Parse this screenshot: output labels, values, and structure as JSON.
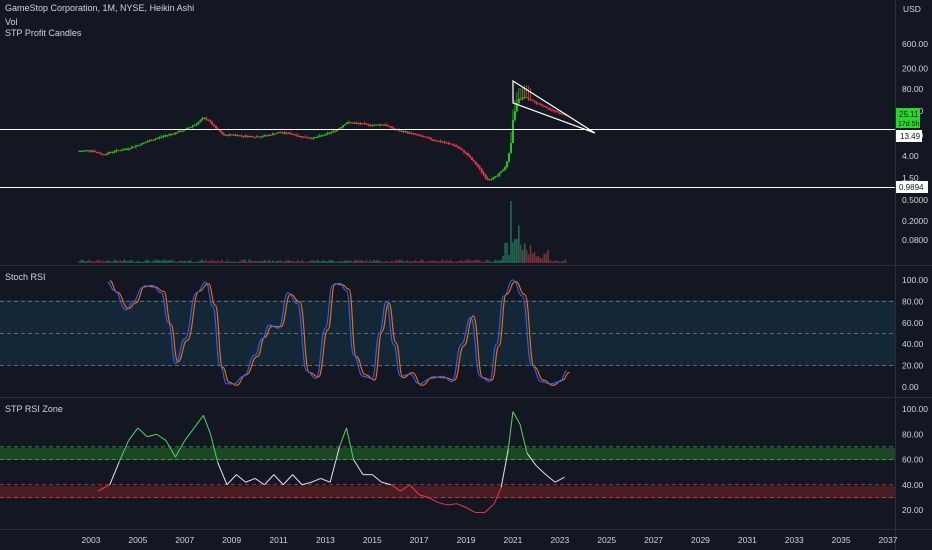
{
  "header": {
    "symbol_line": "GameStop Corporation, 1M, NYSE, Heikin Ashi",
    "vol_label": "Vol",
    "indicator_label": "STP Profit Candles",
    "currency": "USD"
  },
  "price_labels": {
    "current_price": "25.11",
    "countdown": "17d 5h",
    "upper_level": "13.49",
    "lower_level": "0.9894"
  },
  "colors": {
    "background": "#131722",
    "candle_up": "#26c623",
    "candle_down": "#f23645",
    "current_price_bg": "#2bd42b",
    "rsi_k": "#2962ff",
    "rsi_d": "#ff6d00",
    "zone_green": "#1e6b2a",
    "zone_red": "#6b1e1e"
  },
  "chart_data": [
    {
      "type": "candlestick",
      "name": "price",
      "scale": "log",
      "x_range": [
        2003,
        2037
      ],
      "y_ticks": [
        "600.00",
        "200.00",
        "80.00",
        "30.00",
        "10.00",
        "4.00",
        "1.50"
      ],
      "y_tick_values": [
        600,
        200,
        80,
        30,
        10,
        4,
        1.5
      ],
      "close_series": {
        "x": [
          2002.5,
          2003.0,
          2003.5,
          2004.0,
          2004.5,
          2005.0,
          2005.5,
          2006.0,
          2006.5,
          2007.0,
          2007.5,
          2007.8,
          2008.0,
          2008.3,
          2008.7,
          2009.0,
          2009.5,
          2010.0,
          2010.5,
          2011.0,
          2011.5,
          2012.0,
          2012.5,
          2013.0,
          2013.5,
          2013.9,
          2014.5,
          2015.0,
          2015.5,
          2016.0,
          2016.5,
          2017.0,
          2017.5,
          2018.0,
          2018.5,
          2019.0,
          2019.5,
          2019.9,
          2020.3,
          2020.7,
          2020.9,
          2021.0,
          2021.2,
          2021.5,
          2021.8,
          2022.0,
          2022.3,
          2022.6,
          2022.9,
          2023.1,
          2023.3
        ],
        "y": [
          5.0,
          5.2,
          4.3,
          5.0,
          5.5,
          6.5,
          8.0,
          9.5,
          11.0,
          13.0,
          17.0,
          22.0,
          20.0,
          14.0,
          10.0,
          10.5,
          9.8,
          9.5,
          10.0,
          11.5,
          11.0,
          9.5,
          9.0,
          10.5,
          13.0,
          18.0,
          17.0,
          16.0,
          16.5,
          13.0,
          11.5,
          10.0,
          8.5,
          7.5,
          6.5,
          4.5,
          2.5,
          1.4,
          1.6,
          2.5,
          6.0,
          20.0,
          50.0,
          55.0,
          48.0,
          42.0,
          38.0,
          32.0,
          28.0,
          26.0,
          25.11
        ]
      }
    },
    {
      "type": "bar",
      "name": "volume",
      "y_ticks": [
        "0.5000",
        "0.2000",
        "0.0800"
      ]
    },
    {
      "type": "line",
      "name": "Stoch RSI",
      "y_ticks": [
        "100.00",
        "80.00",
        "60.00",
        "40.00",
        "20.00",
        "0.00"
      ],
      "y_tick_values": [
        100,
        80,
        60,
        40,
        20,
        0
      ],
      "ylim": [
        0,
        100
      ],
      "bands": [
        20,
        50,
        80
      ],
      "series_k": {
        "x": [
          2003.7,
          2004.0,
          2004.5,
          2004.8,
          2005.2,
          2005.6,
          2006.0,
          2006.3,
          2006.6,
          2007.0,
          2007.5,
          2007.9,
          2008.2,
          2008.5,
          2008.8,
          2009.1,
          2009.5,
          2010.0,
          2010.3,
          2010.6,
          2011.0,
          2011.4,
          2011.8,
          2012.2,
          2012.6,
          2013.0,
          2013.3,
          2013.6,
          2013.9,
          2014.2,
          2014.6,
          2015.0,
          2015.3,
          2015.6,
          2015.9,
          2016.2,
          2016.6,
          2017.0,
          2017.5,
          2018.0,
          2018.4,
          2018.8,
          2019.2,
          2019.6,
          2020.0,
          2020.3,
          2020.6,
          2021.0,
          2021.4,
          2021.8,
          2022.2,
          2022.6,
          2023.0,
          2023.3
        ],
        "y": [
          98,
          90,
          72,
          80,
          93,
          95,
          88,
          60,
          22,
          45,
          88,
          98,
          75,
          20,
          3,
          3,
          10,
          30,
          45,
          58,
          55,
          88,
          78,
          15,
          8,
          55,
          95,
          97,
          90,
          30,
          10,
          8,
          50,
          80,
          40,
          10,
          12,
          3,
          8,
          10,
          5,
          40,
          65,
          10,
          5,
          40,
          85,
          100,
          85,
          20,
          5,
          3,
          5,
          15
        ]
      }
    },
    {
      "type": "line",
      "name": "STP RSI Zone",
      "y_ticks": [
        "100.00",
        "80.00",
        "60.00",
        "40.00",
        "20.00"
      ],
      "y_tick_values": [
        100,
        80,
        60,
        40,
        20
      ],
      "ylim": [
        10,
        110
      ],
      "bands": [
        30,
        40,
        60,
        70
      ],
      "series": {
        "x": [
          2003.3,
          2003.8,
          2004.2,
          2004.6,
          2005.0,
          2005.4,
          2005.8,
          2006.2,
          2006.6,
          2007.0,
          2007.4,
          2007.8,
          2008.1,
          2008.4,
          2008.8,
          2009.2,
          2009.6,
          2010.0,
          2010.4,
          2010.8,
          2011.2,
          2011.6,
          2012.0,
          2012.4,
          2012.8,
          2013.2,
          2013.6,
          2013.9,
          2014.2,
          2014.6,
          2015.0,
          2015.4,
          2015.8,
          2016.2,
          2016.6,
          2017.0,
          2017.4,
          2017.8,
          2018.2,
          2018.6,
          2019.0,
          2019.4,
          2019.8,
          2020.2,
          2020.5,
          2020.8,
          2021.0,
          2021.3,
          2021.6,
          2022.0,
          2022.4,
          2022.8,
          2023.2
        ],
        "y": [
          35,
          40,
          58,
          75,
          85,
          78,
          80,
          75,
          62,
          75,
          85,
          95,
          80,
          58,
          40,
          48,
          42,
          45,
          40,
          48,
          40,
          48,
          40,
          42,
          45,
          42,
          70,
          85,
          60,
          48,
          48,
          42,
          40,
          35,
          40,
          32,
          30,
          26,
          24,
          25,
          22,
          18,
          18,
          25,
          38,
          68,
          98,
          88,
          65,
          55,
          48,
          42,
          46
        ]
      }
    }
  ],
  "x_axis": {
    "ticks": [
      "2003",
      "2005",
      "2007",
      "2009",
      "2011",
      "2013",
      "2015",
      "2017",
      "2019",
      "2021",
      "2023",
      "2025",
      "2027",
      "2029",
      "2031",
      "2033",
      "2035",
      "2037"
    ]
  },
  "stoch_label": "Stoch RSI",
  "rsi_zone_label": "STP RSI Zone"
}
